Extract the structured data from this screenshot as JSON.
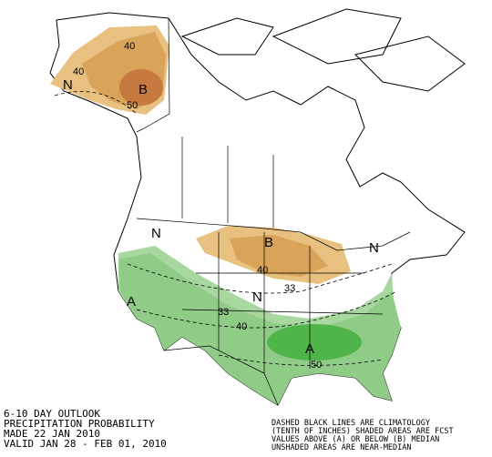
{
  "map": {
    "labels": [
      "40",
      "40",
      "B",
      "50",
      "N",
      "N",
      "B",
      "40",
      "33",
      "N",
      "N",
      "A",
      "33",
      "40",
      "A",
      "50"
    ],
    "info": [
      "6-10 DAY OUTLOOK",
      "PRECIPITATION PROBABILITY",
      "MADE  22 JAN 2010",
      "VALID  JAN 28 - FEB 01, 2010"
    ],
    "legend": [
      "DASHED BLACK LINES ARE CLIMATOLOGY",
      "(TENTH OF INCHES) SHADED AREAS ARE FCST",
      "VALUES ABOVE (A) OR BELOW (B) MEDIAN",
      "UNSHADED AREAS ARE NEAR-MEDIAN"
    ]
  }
}
